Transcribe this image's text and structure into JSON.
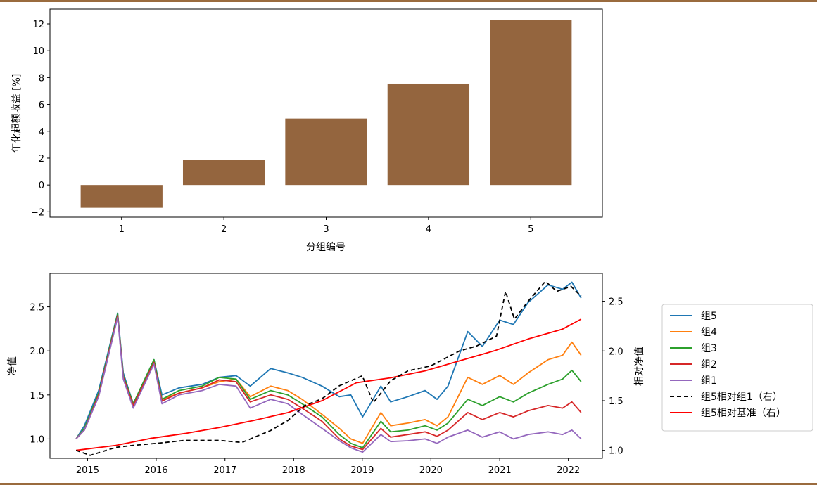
{
  "colors": {
    "bar": "#94653e",
    "rule": "#9a6b3e",
    "g5": "#1f77b4",
    "g4": "#ff7f0e",
    "g3": "#2ca02c",
    "g2": "#d62728",
    "g1": "#9467bd",
    "rel_g1": "#000000",
    "rel_bench": "#ff0000"
  },
  "chart_data": [
    {
      "type": "bar",
      "categories": [
        "1",
        "2",
        "3",
        "4",
        "5"
      ],
      "values": [
        -1.7,
        1.85,
        4.95,
        7.55,
        12.3
      ],
      "xlabel": "分组编号",
      "ylabel": "年化超额收益 [%]",
      "ylim": [
        -2.4,
        13.1
      ],
      "yticks": [
        -2,
        0,
        2,
        4,
        6,
        8,
        10,
        12
      ],
      "ytick_labels": [
        "−2",
        "0",
        "2",
        "4",
        "6",
        "8",
        "10",
        "12"
      ],
      "grid": false
    },
    {
      "type": "line",
      "x_type": "date",
      "xlim": [
        "2014-06-15",
        "2022-07-01"
      ],
      "xtick_labels": [
        "2015",
        "2016",
        "2017",
        "2018",
        "2019",
        "2020",
        "2021",
        "2022"
      ],
      "ylabel": "净值",
      "ylim": [
        0.78,
        2.88
      ],
      "yticks": [
        1.0,
        1.5,
        2.0,
        2.5
      ],
      "ytick_labels": [
        "1.0",
        "1.5",
        "2.0",
        "2.5"
      ],
      "y2label": "相对净值",
      "y2lim": [
        0.92,
        2.78
      ],
      "y2ticks": [
        1.0,
        1.5,
        2.0,
        2.5
      ],
      "y2tick_labels": [
        "1.0",
        "1.5",
        "2.0",
        "2.5"
      ],
      "legend_position": "outside-right",
      "grid": false,
      "series": [
        {
          "name": "组5",
          "axis": "left",
          "color_key": "g5",
          "x": [
            "2014-11-01",
            "2014-12-15",
            "2015-03-01",
            "2015-06-10",
            "2015-07-10",
            "2015-09-01",
            "2015-12-20",
            "2016-02-01",
            "2016-05-01",
            "2016-09-01",
            "2016-12-01",
            "2017-03-01",
            "2017-05-15",
            "2017-09-01",
            "2017-12-01",
            "2018-02-15",
            "2018-06-01",
            "2018-09-01",
            "2018-11-01",
            "2019-01-03",
            "2019-04-10",
            "2019-06-01",
            "2019-09-01",
            "2019-12-01",
            "2020-02-03",
            "2020-04-01",
            "2020-07-15",
            "2020-10-01",
            "2021-01-01",
            "2021-03-15",
            "2021-06-01",
            "2021-09-15",
            "2021-12-01",
            "2022-01-20",
            "2022-03-10"
          ],
          "y": [
            1.0,
            1.15,
            1.55,
            2.43,
            1.75,
            1.4,
            1.9,
            1.5,
            1.58,
            1.62,
            1.7,
            1.72,
            1.6,
            1.8,
            1.75,
            1.7,
            1.6,
            1.48,
            1.5,
            1.25,
            1.6,
            1.42,
            1.48,
            1.55,
            1.45,
            1.6,
            2.22,
            2.05,
            2.35,
            2.3,
            2.55,
            2.75,
            2.7,
            2.78,
            2.6
          ]
        },
        {
          "name": "组4",
          "axis": "left",
          "color_key": "g4",
          "x": [
            "2014-11-01",
            "2014-12-15",
            "2015-03-01",
            "2015-06-10",
            "2015-07-10",
            "2015-09-01",
            "2015-12-20",
            "2016-02-01",
            "2016-05-01",
            "2016-09-01",
            "2016-12-01",
            "2017-03-01",
            "2017-05-15",
            "2017-09-01",
            "2017-12-01",
            "2018-02-15",
            "2018-06-01",
            "2018-09-01",
            "2018-11-01",
            "2019-01-03",
            "2019-04-10",
            "2019-06-01",
            "2019-09-01",
            "2019-12-01",
            "2020-02-03",
            "2020-04-01",
            "2020-07-15",
            "2020-10-01",
            "2021-01-01",
            "2021-03-15",
            "2021-06-01",
            "2021-09-15",
            "2021-12-01",
            "2022-01-20",
            "2022-03-10"
          ],
          "y": [
            1.0,
            1.12,
            1.5,
            2.4,
            1.7,
            1.38,
            1.87,
            1.45,
            1.52,
            1.58,
            1.65,
            1.68,
            1.48,
            1.6,
            1.55,
            1.45,
            1.28,
            1.12,
            1.0,
            0.95,
            1.3,
            1.15,
            1.18,
            1.22,
            1.15,
            1.25,
            1.7,
            1.62,
            1.72,
            1.62,
            1.75,
            1.9,
            1.95,
            2.1,
            1.95
          ]
        },
        {
          "name": "组3",
          "axis": "left",
          "color_key": "g3",
          "x": [
            "2014-11-01",
            "2014-12-15",
            "2015-03-01",
            "2015-06-10",
            "2015-07-10",
            "2015-09-01",
            "2015-12-20",
            "2016-02-01",
            "2016-05-01",
            "2016-09-01",
            "2016-12-01",
            "2017-03-01",
            "2017-05-15",
            "2017-09-01",
            "2017-12-01",
            "2018-02-15",
            "2018-06-01",
            "2018-09-01",
            "2018-11-01",
            "2019-01-03",
            "2019-04-10",
            "2019-06-01",
            "2019-09-01",
            "2019-12-01",
            "2020-02-03",
            "2020-04-01",
            "2020-07-15",
            "2020-10-01",
            "2021-01-01",
            "2021-03-15",
            "2021-06-01",
            "2021-09-15",
            "2021-12-01",
            "2022-01-20",
            "2022-03-10"
          ],
          "y": [
            1.0,
            1.12,
            1.52,
            2.42,
            1.72,
            1.4,
            1.9,
            1.45,
            1.55,
            1.6,
            1.7,
            1.68,
            1.45,
            1.55,
            1.5,
            1.4,
            1.25,
            1.05,
            0.95,
            0.9,
            1.2,
            1.08,
            1.1,
            1.15,
            1.1,
            1.18,
            1.45,
            1.38,
            1.48,
            1.42,
            1.52,
            1.62,
            1.68,
            1.78,
            1.65
          ]
        },
        {
          "name": "组2",
          "axis": "left",
          "color_key": "g2",
          "x": [
            "2014-11-01",
            "2014-12-15",
            "2015-03-01",
            "2015-06-10",
            "2015-07-10",
            "2015-09-01",
            "2015-12-20",
            "2016-02-01",
            "2016-05-01",
            "2016-09-01",
            "2016-12-01",
            "2017-03-01",
            "2017-05-15",
            "2017-09-01",
            "2017-12-01",
            "2018-02-15",
            "2018-06-01",
            "2018-09-01",
            "2018-11-01",
            "2019-01-03",
            "2019-04-10",
            "2019-06-01",
            "2019-09-01",
            "2019-12-01",
            "2020-02-03",
            "2020-04-01",
            "2020-07-15",
            "2020-10-01",
            "2021-01-01",
            "2021-03-15",
            "2021-06-01",
            "2021-09-15",
            "2021-12-01",
            "2022-01-20",
            "2022-03-10"
          ],
          "y": [
            1.0,
            1.1,
            1.5,
            2.4,
            1.7,
            1.38,
            1.87,
            1.43,
            1.52,
            1.58,
            1.67,
            1.65,
            1.42,
            1.5,
            1.45,
            1.35,
            1.2,
            1.0,
            0.92,
            0.88,
            1.12,
            1.02,
            1.05,
            1.08,
            1.03,
            1.1,
            1.3,
            1.22,
            1.3,
            1.25,
            1.32,
            1.38,
            1.35,
            1.42,
            1.3
          ]
        },
        {
          "name": "组1",
          "axis": "left",
          "color_key": "g1",
          "x": [
            "2014-11-01",
            "2014-12-15",
            "2015-03-01",
            "2015-06-10",
            "2015-07-10",
            "2015-09-01",
            "2015-12-20",
            "2016-02-01",
            "2016-05-01",
            "2016-09-01",
            "2016-12-01",
            "2017-03-01",
            "2017-05-15",
            "2017-09-01",
            "2017-12-01",
            "2018-02-15",
            "2018-06-01",
            "2018-09-01",
            "2018-11-01",
            "2019-01-03",
            "2019-04-10",
            "2019-06-01",
            "2019-09-01",
            "2019-12-01",
            "2020-02-03",
            "2020-04-01",
            "2020-07-15",
            "2020-10-01",
            "2021-01-01",
            "2021-03-15",
            "2021-06-01",
            "2021-09-15",
            "2021-12-01",
            "2022-01-20",
            "2022-03-10"
          ],
          "y": [
            1.0,
            1.1,
            1.48,
            2.38,
            1.68,
            1.35,
            1.85,
            1.4,
            1.5,
            1.55,
            1.62,
            1.6,
            1.35,
            1.45,
            1.4,
            1.28,
            1.12,
            0.98,
            0.9,
            0.85,
            1.05,
            0.97,
            0.98,
            1.0,
            0.95,
            1.02,
            1.1,
            1.02,
            1.08,
            1.0,
            1.05,
            1.08,
            1.05,
            1.1,
            1.0
          ]
        },
        {
          "name": "组5相对组1（右）",
          "axis": "right",
          "color_key": "rel_g1",
          "dashed": true,
          "x": [
            "2014-11-01",
            "2015-01-15",
            "2015-06-01",
            "2015-09-01",
            "2016-01-01",
            "2016-06-01",
            "2016-12-01",
            "2017-04-01",
            "2017-09-01",
            "2017-12-01",
            "2018-03-01",
            "2018-06-01",
            "2018-09-01",
            "2019-01-01",
            "2019-03-01",
            "2019-06-01",
            "2019-09-01",
            "2020-01-01",
            "2020-06-01",
            "2020-09-01",
            "2020-12-15",
            "2021-02-01",
            "2021-03-20",
            "2021-06-01",
            "2021-09-01",
            "2021-11-01",
            "2022-01-15",
            "2022-03-10"
          ],
          "y": [
            1.0,
            0.95,
            1.03,
            1.05,
            1.07,
            1.1,
            1.1,
            1.08,
            1.2,
            1.3,
            1.45,
            1.52,
            1.65,
            1.75,
            1.48,
            1.7,
            1.8,
            1.85,
            2.0,
            2.05,
            2.15,
            2.6,
            2.32,
            2.5,
            2.7,
            2.6,
            2.65,
            2.55
          ]
        },
        {
          "name": "组5相对基准（右）",
          "axis": "right",
          "color_key": "rel_bench",
          "dashed": false,
          "x": [
            "2014-11-01",
            "2015-06-01",
            "2015-12-01",
            "2016-06-01",
            "2016-12-01",
            "2017-06-01",
            "2017-12-01",
            "2018-06-01",
            "2018-12-01",
            "2019-06-01",
            "2019-12-01",
            "2020-06-01",
            "2020-12-01",
            "2021-06-01",
            "2021-12-01",
            "2022-03-10"
          ],
          "y": [
            1.0,
            1.05,
            1.12,
            1.17,
            1.23,
            1.3,
            1.38,
            1.5,
            1.68,
            1.73,
            1.8,
            1.9,
            2.0,
            2.12,
            2.22,
            2.32
          ]
        }
      ]
    }
  ]
}
